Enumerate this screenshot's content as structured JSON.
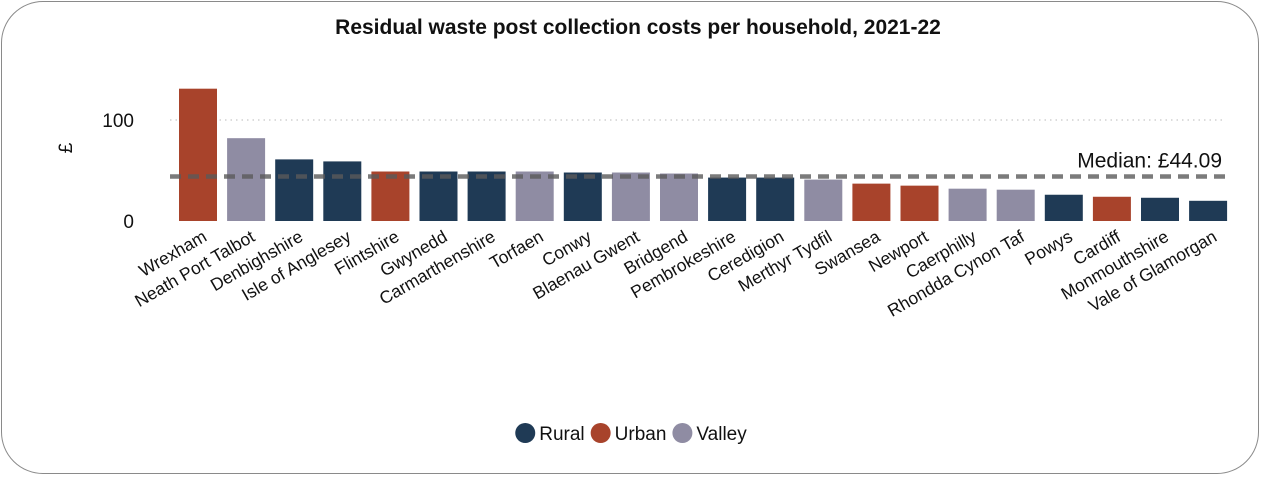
{
  "chart_data": {
    "type": "bar",
    "title": "Residual waste post collection costs per household, 2021-22",
    "ylabel": "£",
    "xlabel": "",
    "ylim": [
      0,
      130
    ],
    "yticks": [
      0,
      100
    ],
    "grid": "horizontal-dotted",
    "legend_position": "bottom",
    "categories": [
      "Wrexham",
      "Neath Port Talbot",
      "Denbighshire",
      "Isle of Anglesey",
      "Flintshire",
      "Gwynedd",
      "Carmarthenshire",
      "Torfaen",
      "Conwy",
      "Blaenau Gwent",
      "Bridgend",
      "Pembrokeshire",
      "Ceredigion",
      "Merthyr Tydfil",
      "Swansea",
      "Newport",
      "Caerphilly",
      "Rhondda Cynon Taf",
      "Powys",
      "Cardiff",
      "Monmouthshire",
      "Vale of Glamorgan"
    ],
    "values": [
      131,
      82,
      61,
      59,
      49,
      49,
      49,
      49,
      48,
      48,
      47,
      43,
      43,
      41,
      37,
      35,
      32,
      31,
      26,
      24,
      23,
      20
    ],
    "groups": [
      "Urban",
      "Valley",
      "Rural",
      "Rural",
      "Urban",
      "Rural",
      "Rural",
      "Valley",
      "Rural",
      "Valley",
      "Valley",
      "Rural",
      "Rural",
      "Valley",
      "Urban",
      "Urban",
      "Valley",
      "Valley",
      "Rural",
      "Urban",
      "Rural",
      "Rural"
    ],
    "legend": [
      {
        "name": "Rural",
        "color": "#1f3a55"
      },
      {
        "name": "Urban",
        "color": "#a8432b"
      },
      {
        "name": "Valley",
        "color": "#8f8ca3"
      }
    ],
    "median": {
      "value": 44.09,
      "label": "Median: £44.09"
    }
  }
}
